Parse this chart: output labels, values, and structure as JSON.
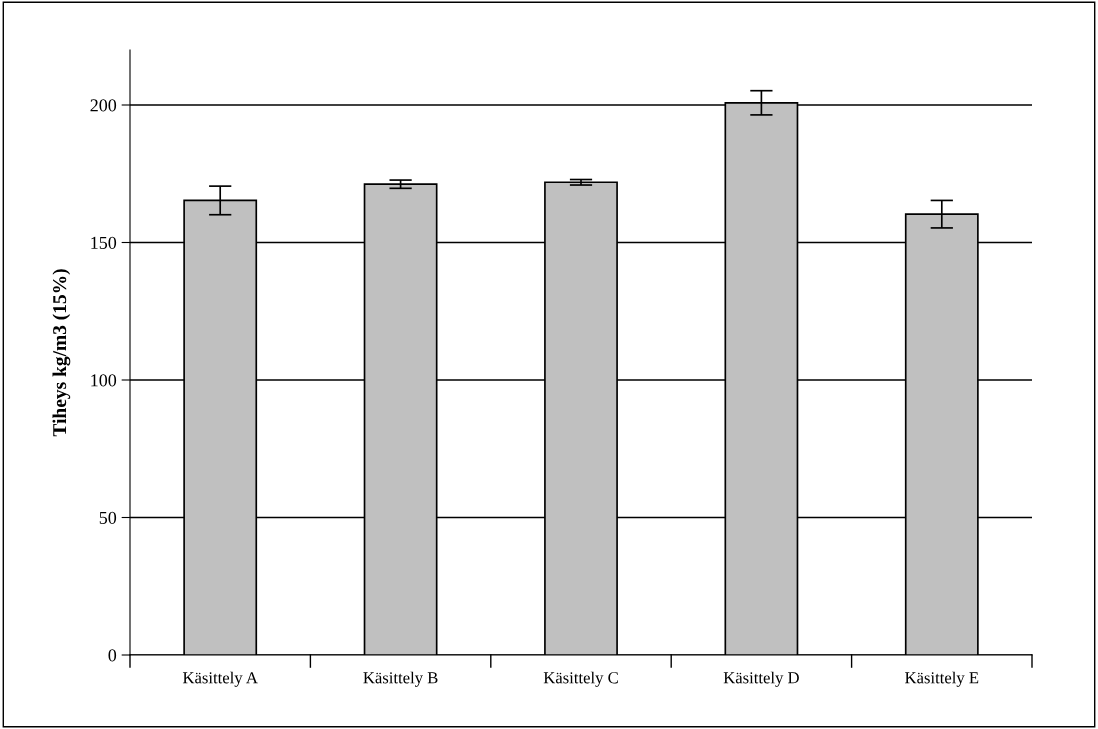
{
  "chart_data": {
    "type": "bar",
    "ylabel": "Tiheys kg/m3 (15%)",
    "categories": [
      "Käsittely A",
      "Käsittely B",
      "Käsittely C",
      "Käsittely D",
      "Käsittely E"
    ],
    "values": [
      165.3,
      171.2,
      171.9,
      200.8,
      160.3
    ],
    "errors": [
      5.2,
      1.5,
      1,
      4.4,
      5
    ],
    "color": "#c0c0c0",
    "ylim": [
      0,
      220
    ],
    "yticks": [
      0,
      50,
      100,
      150,
      200
    ],
    "grid": "y"
  }
}
